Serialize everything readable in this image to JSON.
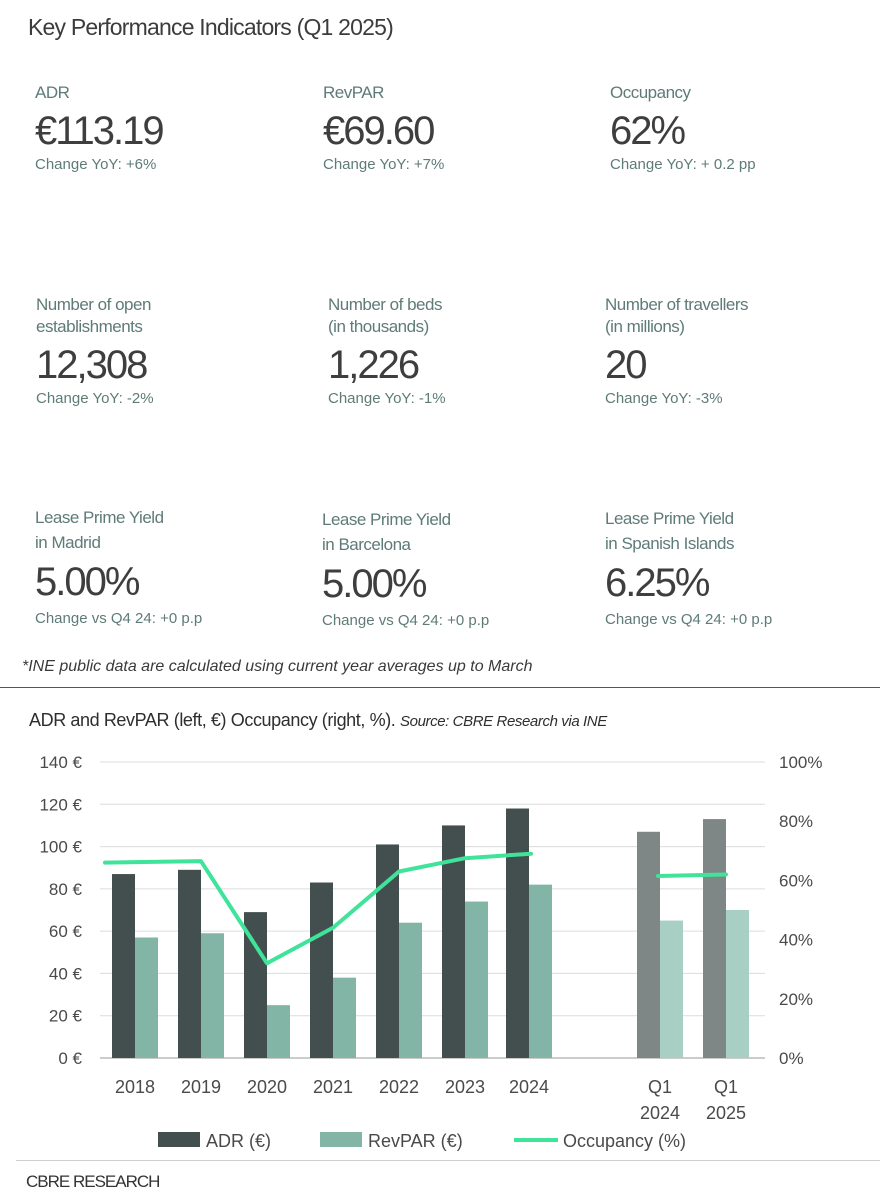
{
  "header": {
    "title": "Key Performance Indicators (Q1 2025)"
  },
  "kpis": [
    {
      "label": "ADR",
      "value": "€113.19",
      "change": "Change YoY: +6%"
    },
    {
      "label": "RevPAR",
      "value": "€69.60",
      "change": "Change YoY: +7%"
    },
    {
      "label": "Occupancy",
      "value": "62%",
      "change": "Change YoY: + 0.2 pp"
    },
    {
      "label": "Number of open\nestablishments",
      "value": "12,308",
      "change": "Change YoY: -2%"
    },
    {
      "label": "Number of beds\n(in thousands)",
      "value": "1,226",
      "change": "Change YoY: -1%"
    },
    {
      "label": "Number of travellers\n(in millions)",
      "value": "20",
      "change": "Change YoY: -3%"
    },
    {
      "label": "Lease Prime Yield\nin Madrid",
      "value": "5.00%",
      "change": "Change vs Q4 24: +0 p.p"
    },
    {
      "label": "Lease Prime Yield\nin Barcelona",
      "value": "5.00%",
      "change": "Change vs Q4 24: +0 p.p"
    },
    {
      "label": "Lease Prime Yield\nin Spanish Islands",
      "value": "6.25%",
      "change": "Change vs Q4 24: +0 p.p"
    }
  ],
  "footnote": "*INE public data are calculated using current year averages up to March",
  "chart_header": {
    "title": "ADR and RevPAR (left, €) Occupancy (right, %).",
    "source": "Source: CBRE Research via INE"
  },
  "brand": "CBRE RESEARCH",
  "colors": {
    "adr": "#434f4e",
    "revpar": "#83b5a7",
    "adr_quarter": "#7e8785",
    "revpar_quarter": "#a8cfc4",
    "occupancy": "#3fe39a",
    "grid": "#dcdcdc",
    "axis_text": "#4a4a4a"
  },
  "chart_data": {
    "type": "bar",
    "categories": [
      "2018",
      "2019",
      "2020",
      "2021",
      "2022",
      "2023",
      "2024",
      "Q1 2024",
      "Q1 2025"
    ],
    "series": [
      {
        "name": "ADR (€)",
        "axis": "left",
        "values": [
          87,
          89,
          69,
          83,
          101,
          110,
          118,
          107,
          113
        ]
      },
      {
        "name": "RevPAR (€)",
        "axis": "left",
        "values": [
          57,
          59,
          25,
          38,
          64,
          74,
          82,
          65,
          70
        ]
      },
      {
        "name": "Occupancy (%)",
        "type": "line",
        "axis": "right",
        "values": [
          66,
          66.5,
          32,
          44,
          63,
          67.5,
          69,
          61.5,
          62
        ]
      }
    ],
    "line_segments": [
      [
        "2018",
        "2024"
      ],
      [
        "Q1 2024",
        "Q1 2025"
      ]
    ],
    "y_left": {
      "range": [
        0,
        140
      ],
      "ticks": [
        "0 €",
        "20 €",
        "40 €",
        "60 €",
        "80 €",
        "100 €",
        "120 €",
        "140 €"
      ]
    },
    "y_right": {
      "range": [
        0,
        100
      ],
      "ticks": [
        "0%",
        "20%",
        "40%",
        "60%",
        "80%",
        "100%"
      ]
    },
    "x_tick_labels": [
      [
        "2018"
      ],
      [
        "2019"
      ],
      [
        "2020"
      ],
      [
        "2021"
      ],
      [
        "2022"
      ],
      [
        "2023"
      ],
      [
        "2024"
      ],
      [
        "Q1",
        "2024"
      ],
      [
        "Q1",
        "2025"
      ]
    ],
    "grid": true,
    "legend_position": "bottom"
  }
}
